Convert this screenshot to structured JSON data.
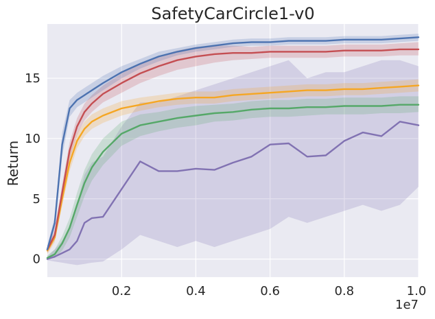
{
  "chart_data": {
    "type": "line",
    "title": "SafetyCarCircle1-v0",
    "xlabel": "",
    "ylabel": "Return",
    "x_offset_text": "1e7",
    "xlim": [
      0.0,
      1.0
    ],
    "ylim": [
      -1.5,
      19.5
    ],
    "xticks": [
      0.2,
      0.4,
      0.6,
      0.8,
      1.0
    ],
    "xtick_labels": [
      "0.2",
      "0.4",
      "0.6",
      "0.8",
      "1.0"
    ],
    "yticks": [
      0,
      5,
      10,
      15
    ],
    "ytick_labels": [
      "0",
      "5",
      "10",
      "15"
    ],
    "grid": true,
    "legend": "none",
    "background": "#eaeaf2",
    "x": [
      0.0,
      0.02,
      0.04,
      0.06,
      0.08,
      0.1,
      0.12,
      0.15,
      0.2,
      0.25,
      0.3,
      0.35,
      0.4,
      0.45,
      0.5,
      0.55,
      0.6,
      0.65,
      0.7,
      0.75,
      0.8,
      0.85,
      0.9,
      0.95,
      1.0
    ],
    "series": [
      {
        "name": "blue",
        "color": "#4c72b0",
        "values": [
          0.8,
          3.0,
          9.5,
          12.5,
          13.2,
          13.6,
          14.0,
          14.6,
          15.5,
          16.2,
          16.8,
          17.2,
          17.5,
          17.7,
          17.9,
          18.0,
          18.0,
          18.1,
          18.1,
          18.1,
          18.2,
          18.2,
          18.2,
          18.3,
          18.4
        ],
        "lower": [
          0.5,
          2.5,
          8.5,
          11.8,
          12.6,
          13.0,
          13.4,
          14.0,
          15.0,
          15.8,
          16.4,
          16.9,
          17.2,
          17.4,
          17.6,
          17.7,
          17.7,
          17.8,
          17.8,
          17.8,
          17.9,
          17.9,
          17.9,
          18.0,
          18.1
        ],
        "upper": [
          1.1,
          3.5,
          10.5,
          13.2,
          13.8,
          14.2,
          14.6,
          15.2,
          16.0,
          16.6,
          17.2,
          17.5,
          17.8,
          18.0,
          18.2,
          18.3,
          18.3,
          18.4,
          18.4,
          18.4,
          18.5,
          18.5,
          18.5,
          18.6,
          18.7
        ]
      },
      {
        "name": "red",
        "color": "#c44e52",
        "values": [
          0.8,
          2.0,
          5.5,
          9.0,
          11.0,
          12.2,
          12.9,
          13.7,
          14.6,
          15.4,
          16.0,
          16.5,
          16.8,
          17.0,
          17.1,
          17.1,
          17.2,
          17.2,
          17.2,
          17.2,
          17.3,
          17.3,
          17.3,
          17.4,
          17.4
        ],
        "lower": [
          0.5,
          1.6,
          4.8,
          8.3,
          10.3,
          11.5,
          12.2,
          13.0,
          13.8,
          14.6,
          15.2,
          15.7,
          16.0,
          16.3,
          16.5,
          16.6,
          16.7,
          16.7,
          16.7,
          16.7,
          16.8,
          16.8,
          16.8,
          16.9,
          16.9
        ],
        "upper": [
          1.1,
          2.4,
          6.2,
          9.7,
          11.7,
          12.9,
          13.6,
          14.4,
          15.4,
          16.2,
          16.8,
          17.3,
          17.6,
          17.7,
          17.7,
          17.6,
          17.7,
          17.7,
          17.7,
          17.7,
          17.8,
          17.8,
          17.8,
          17.9,
          18.0
        ]
      },
      {
        "name": "orange",
        "color": "#f5a623",
        "values": [
          0.7,
          1.8,
          5.0,
          8.0,
          9.8,
          10.8,
          11.4,
          11.9,
          12.5,
          12.8,
          13.1,
          13.3,
          13.4,
          13.4,
          13.6,
          13.7,
          13.8,
          13.9,
          14.0,
          14.0,
          14.1,
          14.1,
          14.2,
          14.3,
          14.4
        ],
        "lower": [
          0.4,
          1.4,
          4.4,
          7.3,
          9.2,
          10.2,
          10.8,
          11.3,
          11.9,
          12.3,
          12.6,
          12.8,
          12.9,
          12.9,
          13.1,
          13.2,
          13.3,
          13.4,
          13.5,
          13.5,
          13.6,
          13.6,
          13.7,
          13.8,
          13.9
        ],
        "upper": [
          1.0,
          2.2,
          5.6,
          8.7,
          10.4,
          11.4,
          12.0,
          12.5,
          13.1,
          13.4,
          13.6,
          13.8,
          13.9,
          13.9,
          14.1,
          14.2,
          14.3,
          14.4,
          14.5,
          14.5,
          14.6,
          14.6,
          14.7,
          14.8,
          14.9
        ]
      },
      {
        "name": "green",
        "color": "#55a868",
        "values": [
          0.1,
          0.4,
          1.3,
          2.6,
          4.5,
          6.3,
          7.6,
          8.9,
          10.4,
          11.1,
          11.4,
          11.7,
          11.9,
          12.1,
          12.2,
          12.4,
          12.5,
          12.5,
          12.6,
          12.6,
          12.7,
          12.7,
          12.7,
          12.8,
          12.8
        ],
        "lower": [
          0.0,
          0.1,
          0.7,
          1.8,
          3.5,
          5.2,
          6.5,
          7.8,
          9.4,
          10.2,
          10.6,
          10.9,
          11.1,
          11.4,
          11.5,
          11.7,
          11.8,
          11.8,
          11.9,
          12.0,
          12.0,
          12.0,
          12.1,
          12.1,
          12.2
        ],
        "upper": [
          0.3,
          0.8,
          1.9,
          3.4,
          5.5,
          7.4,
          8.7,
          10.0,
          11.4,
          12.0,
          12.2,
          12.5,
          12.7,
          12.8,
          12.9,
          13.1,
          13.2,
          13.2,
          13.3,
          13.3,
          13.4,
          13.4,
          13.4,
          13.5,
          13.5
        ]
      },
      {
        "name": "purple",
        "color": "#8172b2",
        "values": [
          0.0,
          0.2,
          0.5,
          0.8,
          1.5,
          3.0,
          3.4,
          3.5,
          5.8,
          8.1,
          7.3,
          7.3,
          7.5,
          7.4,
          8.0,
          8.5,
          9.5,
          9.6,
          8.5,
          8.6,
          9.8,
          10.5,
          10.2,
          11.4,
          11.1
        ],
        "lower": [
          -0.1,
          -0.2,
          -0.3,
          -0.4,
          -0.5,
          -0.4,
          -0.3,
          -0.2,
          0.8,
          2.0,
          1.5,
          1.0,
          1.5,
          1.0,
          1.5,
          2.0,
          2.5,
          3.5,
          3.0,
          3.5,
          4.0,
          4.5,
          4.0,
          4.5,
          6.0
        ],
        "upper": [
          0.2,
          0.8,
          1.5,
          2.5,
          4.5,
          7.0,
          8.0,
          8.5,
          11.0,
          13.0,
          13.0,
          13.5,
          14.0,
          14.5,
          15.0,
          15.5,
          16.0,
          16.5,
          15.0,
          15.5,
          15.5,
          16.0,
          16.5,
          16.5,
          16.0
        ]
      }
    ]
  }
}
